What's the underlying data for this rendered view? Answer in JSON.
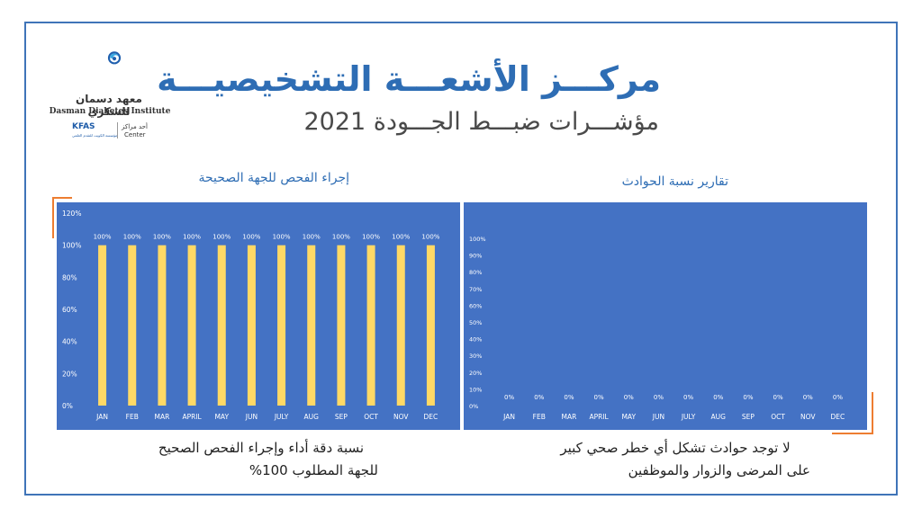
{
  "title": "مركـــز الأشعـــة التشخيصيـــة",
  "subtitle": "مؤشـــرات ضبـــط الجـــودة  2021",
  "logo": {
    "arabic_name": "معهد دسمان للسكري",
    "english_name": "Dasman Diabetes Institute",
    "kfas": "KFAS",
    "kfas_sub": "مؤسسة الكويت للتقدم العلمي",
    "center_ar": "أحد مراكز",
    "center_en": "Center",
    "icon": "dasman-logo-icon"
  },
  "colors": {
    "frame": "#3f74b8",
    "chart_bg": "#4472c4",
    "bar": "#ffd966",
    "accent": "#ed7d31",
    "title": "#2e6db4"
  },
  "chart_data": [
    {
      "type": "bar",
      "title": "إجراء الفحص للجهة الصحيحة",
      "categories": [
        "JAN",
        "FEB",
        "MAR",
        "APRIL",
        "MAY",
        "JUN",
        "JULY",
        "AUG",
        "SEP",
        "OCT",
        "NOV",
        "DEC"
      ],
      "values": [
        100,
        100,
        100,
        100,
        100,
        100,
        100,
        100,
        100,
        100,
        100,
        100
      ],
      "data_labels": [
        "100%",
        "100%",
        "100%",
        "100%",
        "100%",
        "100%",
        "100%",
        "100%",
        "100%",
        "100%",
        "100%",
        "100%"
      ],
      "yticks": [
        "0%",
        "20%",
        "40%",
        "60%",
        "80%",
        "100%",
        "120%"
      ],
      "ylim": [
        0,
        120
      ],
      "grid": false,
      "caption": [
        "نسبة دقة أداء وإجراء الفحص الصحيح",
        "للجهة المطلوب 100%"
      ]
    },
    {
      "type": "bar",
      "title": "تقارير نسبة الحوادث",
      "categories": [
        "JAN",
        "FEB",
        "MAR",
        "APRIL",
        "MAY",
        "JUN",
        "JULY",
        "AUG",
        "SEP",
        "OCT",
        "NOV",
        "DEC"
      ],
      "values": [
        0,
        0,
        0,
        0,
        0,
        0,
        0,
        0,
        0,
        0,
        0,
        0
      ],
      "data_labels": [
        "0%",
        "0%",
        "0%",
        "0%",
        "0%",
        "0%",
        "0%",
        "0%",
        "0%",
        "0%",
        "0%",
        "0%"
      ],
      "yticks": [
        "0%",
        "10%",
        "20%",
        "30%",
        "40%",
        "50%",
        "60%",
        "70%",
        "80%",
        "90%",
        "100%"
      ],
      "ylim": [
        0,
        100
      ],
      "grid": false,
      "caption": [
        "لا توجد حوادث تشكل أي خطر صحي كبير",
        "على المرضى والزوار والموظفين"
      ]
    }
  ]
}
